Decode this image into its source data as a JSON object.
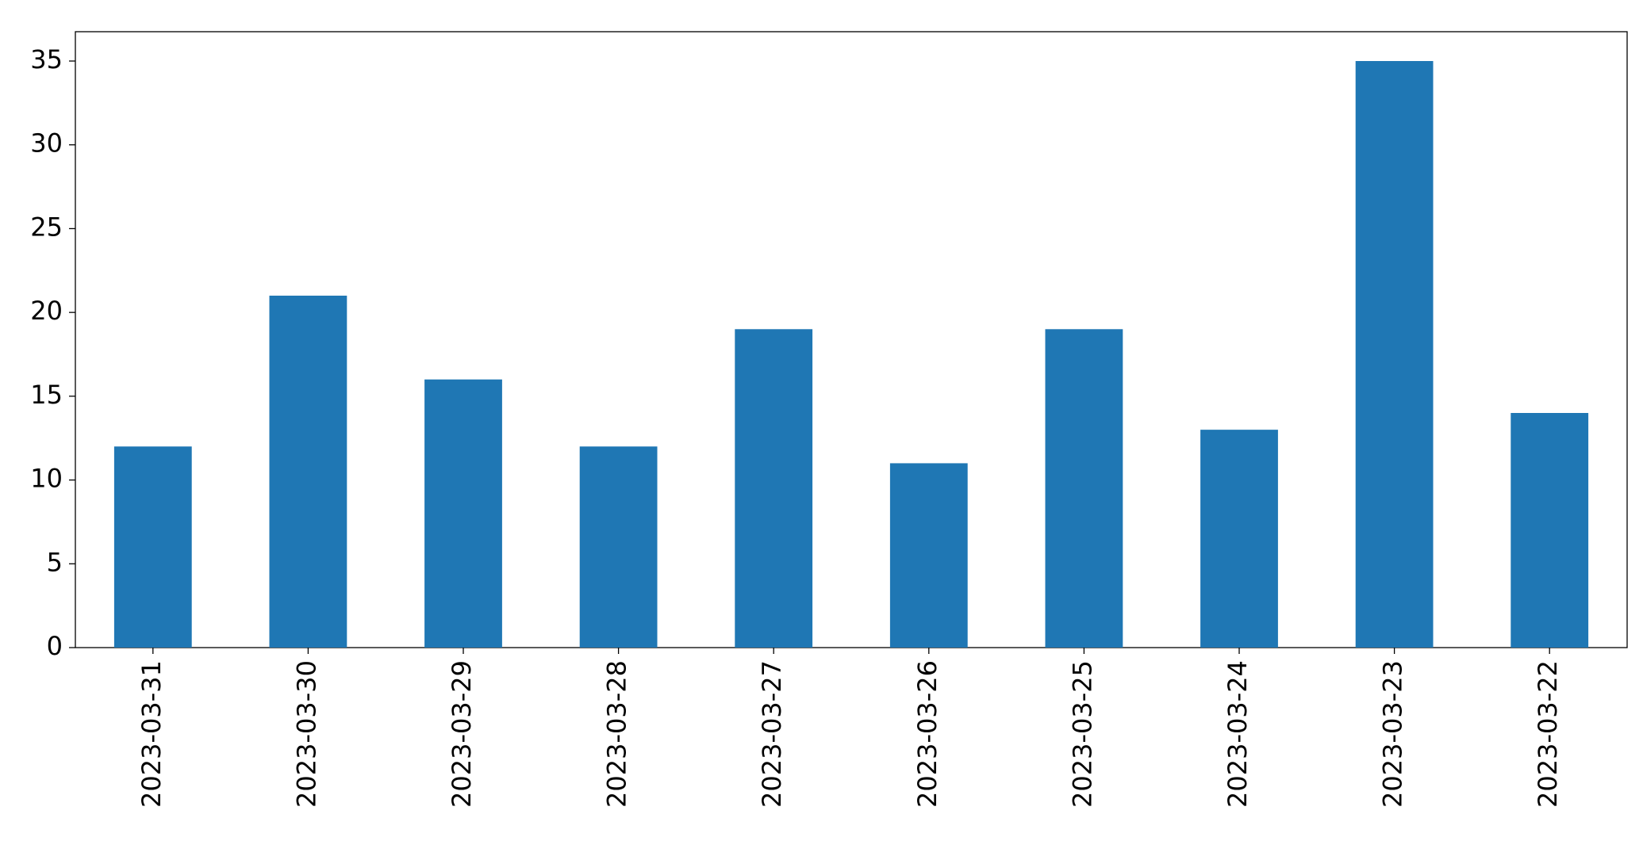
{
  "chart_data": {
    "type": "bar",
    "categories": [
      "2023-03-31",
      "2023-03-30",
      "2023-03-29",
      "2023-03-28",
      "2023-03-27",
      "2023-03-26",
      "2023-03-25",
      "2023-03-24",
      "2023-03-23",
      "2023-03-22"
    ],
    "values": [
      12,
      21,
      16,
      12,
      19,
      11,
      19,
      13,
      35,
      14
    ],
    "color": "#1f77b4",
    "ylim": [
      0,
      36.75
    ],
    "yticks": [
      0,
      5,
      10,
      15,
      20,
      25,
      30,
      35
    ],
    "grid": false
  }
}
